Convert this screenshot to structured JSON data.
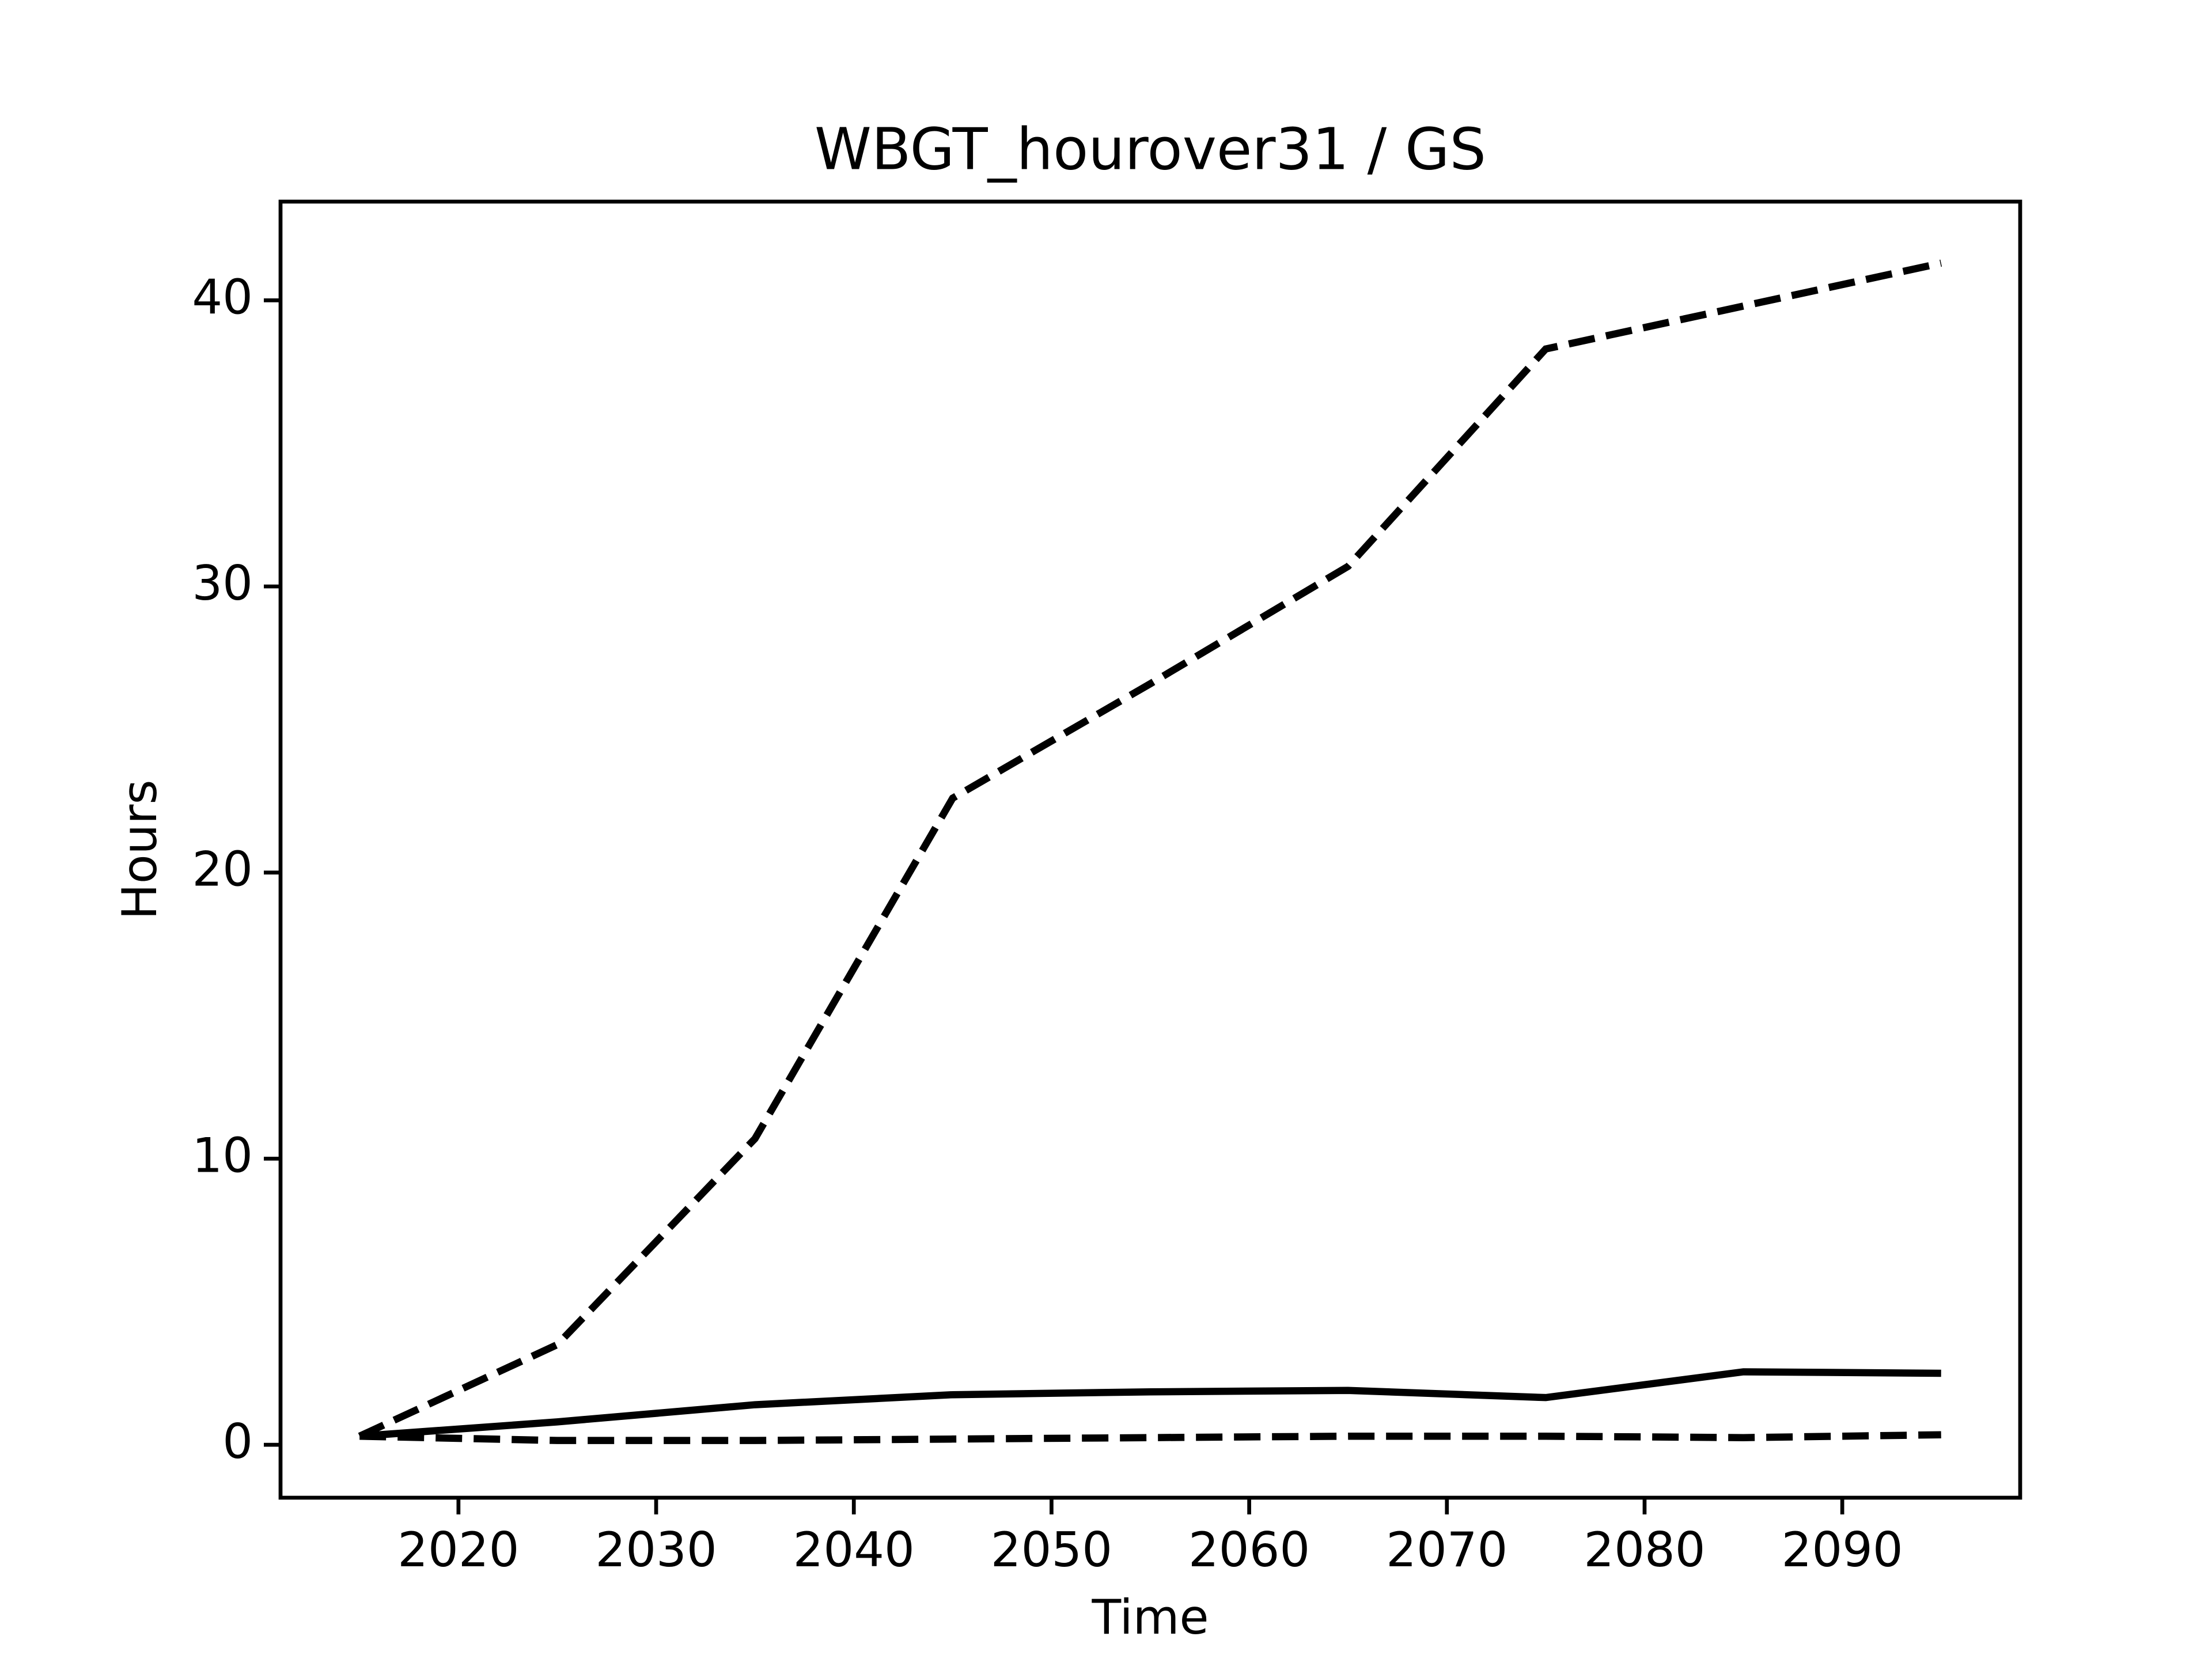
{
  "chart_data": {
    "type": "line",
    "title": "WBGT_hourover31 / GS",
    "xlabel": "Time",
    "ylabel": "Hours",
    "x": [
      2015,
      2025,
      2035,
      2045,
      2055,
      2065,
      2075,
      2085,
      2095
    ],
    "series": [
      {
        "color": "#000000",
        "linestyle": "dashed",
        "values": [
          0.3,
          3.5,
          10.7,
          22.6,
          26.6,
          30.7,
          38.3,
          39.8,
          41.3
        ]
      },
      {
        "color": "#000000",
        "linestyle": "solid",
        "values": [
          0.3,
          0.8,
          1.4,
          1.75,
          1.85,
          1.9,
          1.65,
          2.55,
          2.5
        ]
      },
      {
        "color": "#000000",
        "linestyle": "dashed",
        "values": [
          0.3,
          0.15,
          0.15,
          0.2,
          0.25,
          0.3,
          0.3,
          0.25,
          0.35
        ]
      }
    ],
    "xlim": [
      2011,
      2099
    ],
    "ylim": [
      -1.85,
      43.45
    ],
    "xticks": [
      2020,
      2030,
      2040,
      2050,
      2060,
      2070,
      2080,
      2090
    ],
    "yticks": [
      0,
      10,
      20,
      30,
      40
    ],
    "grid": false
  }
}
